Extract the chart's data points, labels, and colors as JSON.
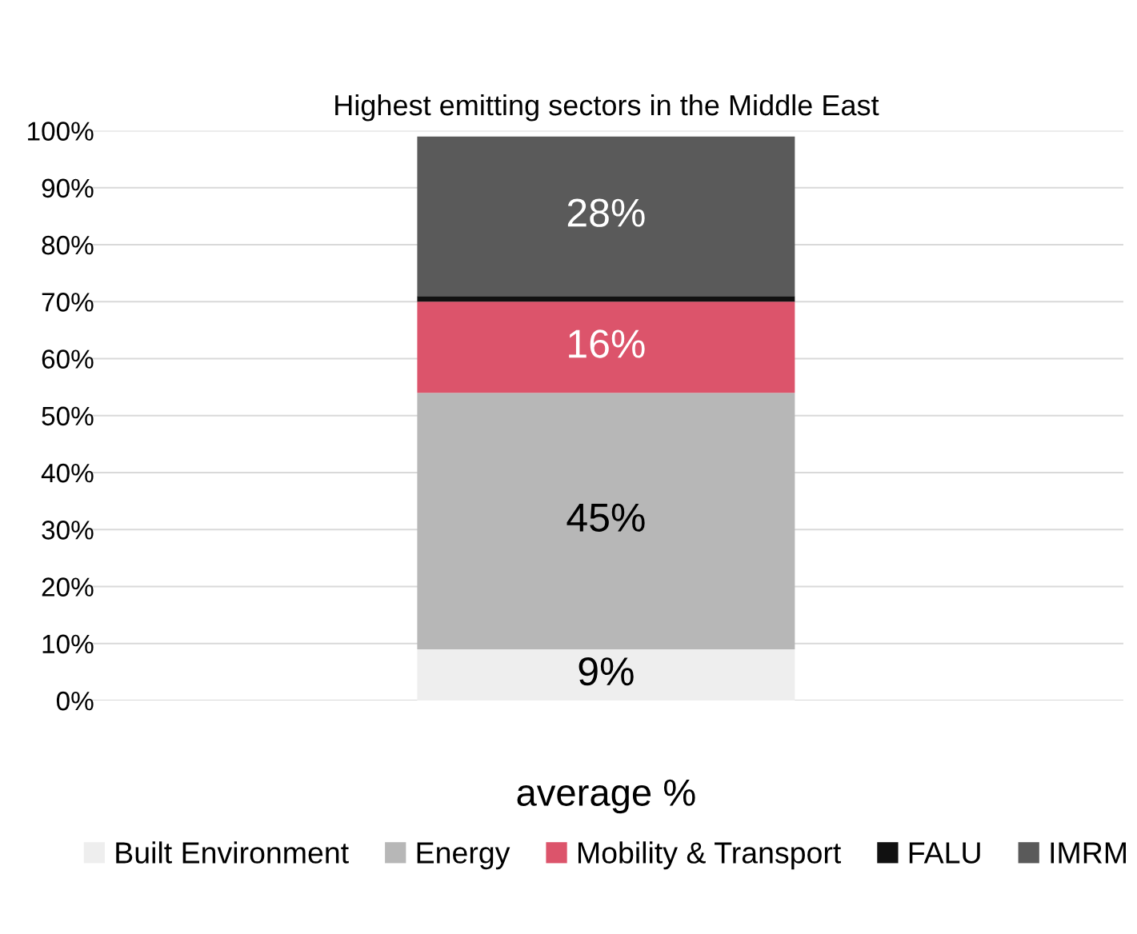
{
  "chart_data": {
    "type": "bar",
    "title": "Highest emitting sectors in the Middle East",
    "categories": [
      "average %"
    ],
    "stacked": true,
    "series": [
      {
        "name": "Built Environment",
        "color": "#eeeeee",
        "values": [
          9
        ],
        "value_labels": [
          "9%"
        ]
      },
      {
        "name": "Energy",
        "color": "#b7b7b7",
        "values": [
          45
        ],
        "value_labels": [
          "45%"
        ]
      },
      {
        "name": "Mobility & Transport",
        "color": "#dc546b",
        "values": [
          16
        ],
        "value_labels": [
          "16%"
        ]
      },
      {
        "name": "FALU",
        "color": "#111111",
        "values": [
          1
        ],
        "value_labels": [
          null
        ]
      },
      {
        "name": "IMRM",
        "color": "#5a5a5a",
        "values": [
          28
        ],
        "value_labels": [
          "28%"
        ]
      }
    ],
    "ylim": [
      0,
      100
    ],
    "yticks": [
      {
        "value": 0,
        "label": "0%"
      },
      {
        "value": 10,
        "label": "10%"
      },
      {
        "value": 20,
        "label": "20%"
      },
      {
        "value": 30,
        "label": "30%"
      },
      {
        "value": 40,
        "label": "40%"
      },
      {
        "value": 50,
        "label": "50%"
      },
      {
        "value": 60,
        "label": "60%"
      },
      {
        "value": 70,
        "label": "70%"
      },
      {
        "value": 80,
        "label": "80%"
      },
      {
        "value": 90,
        "label": "90%"
      },
      {
        "value": 100,
        "label": "100%"
      }
    ],
    "grid": "y",
    "legend": "bottom"
  }
}
